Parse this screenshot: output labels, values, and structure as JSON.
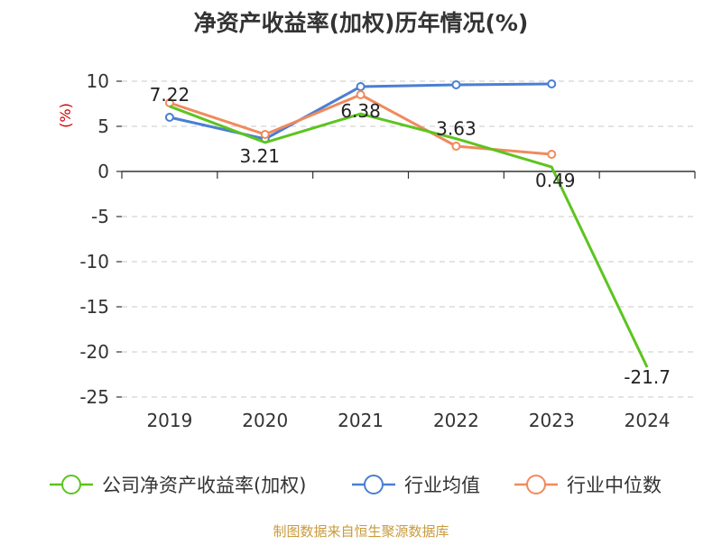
{
  "chart_data": {
    "type": "line",
    "title": "净资产收益率(加权)历年情况(%)",
    "ylabel": "(%)",
    "xlabel": "",
    "categories": [
      "2019",
      "2020",
      "2021",
      "2022",
      "2023",
      "2024"
    ],
    "ylim": [
      -25,
      10
    ],
    "yticks": [
      10,
      5,
      0,
      -5,
      -10,
      -15,
      -20,
      -25
    ],
    "grid": true,
    "legend_position": "bottom",
    "series": [
      {
        "name": "公司净资产收益率(加权)",
        "color": "#5cc41f",
        "values": [
          7.22,
          3.21,
          6.38,
          3.63,
          0.49,
          -21.7
        ],
        "labels": [
          "7.22",
          "3.21",
          "6.38",
          "3.63",
          "0.49",
          "-21.7"
        ]
      },
      {
        "name": "行业均值",
        "color": "#4a7fd4",
        "values": [
          6.0,
          3.6,
          9.4,
          9.6,
          9.7,
          null
        ]
      },
      {
        "name": "行业中位数",
        "color": "#f08a5d",
        "values": [
          7.6,
          4.1,
          8.5,
          2.8,
          1.9,
          null
        ]
      }
    ]
  },
  "source": "制图数据来自恒生聚源数据库",
  "colors": {
    "source_text": "#c89b3c",
    "ylabel": "#cc0000"
  }
}
